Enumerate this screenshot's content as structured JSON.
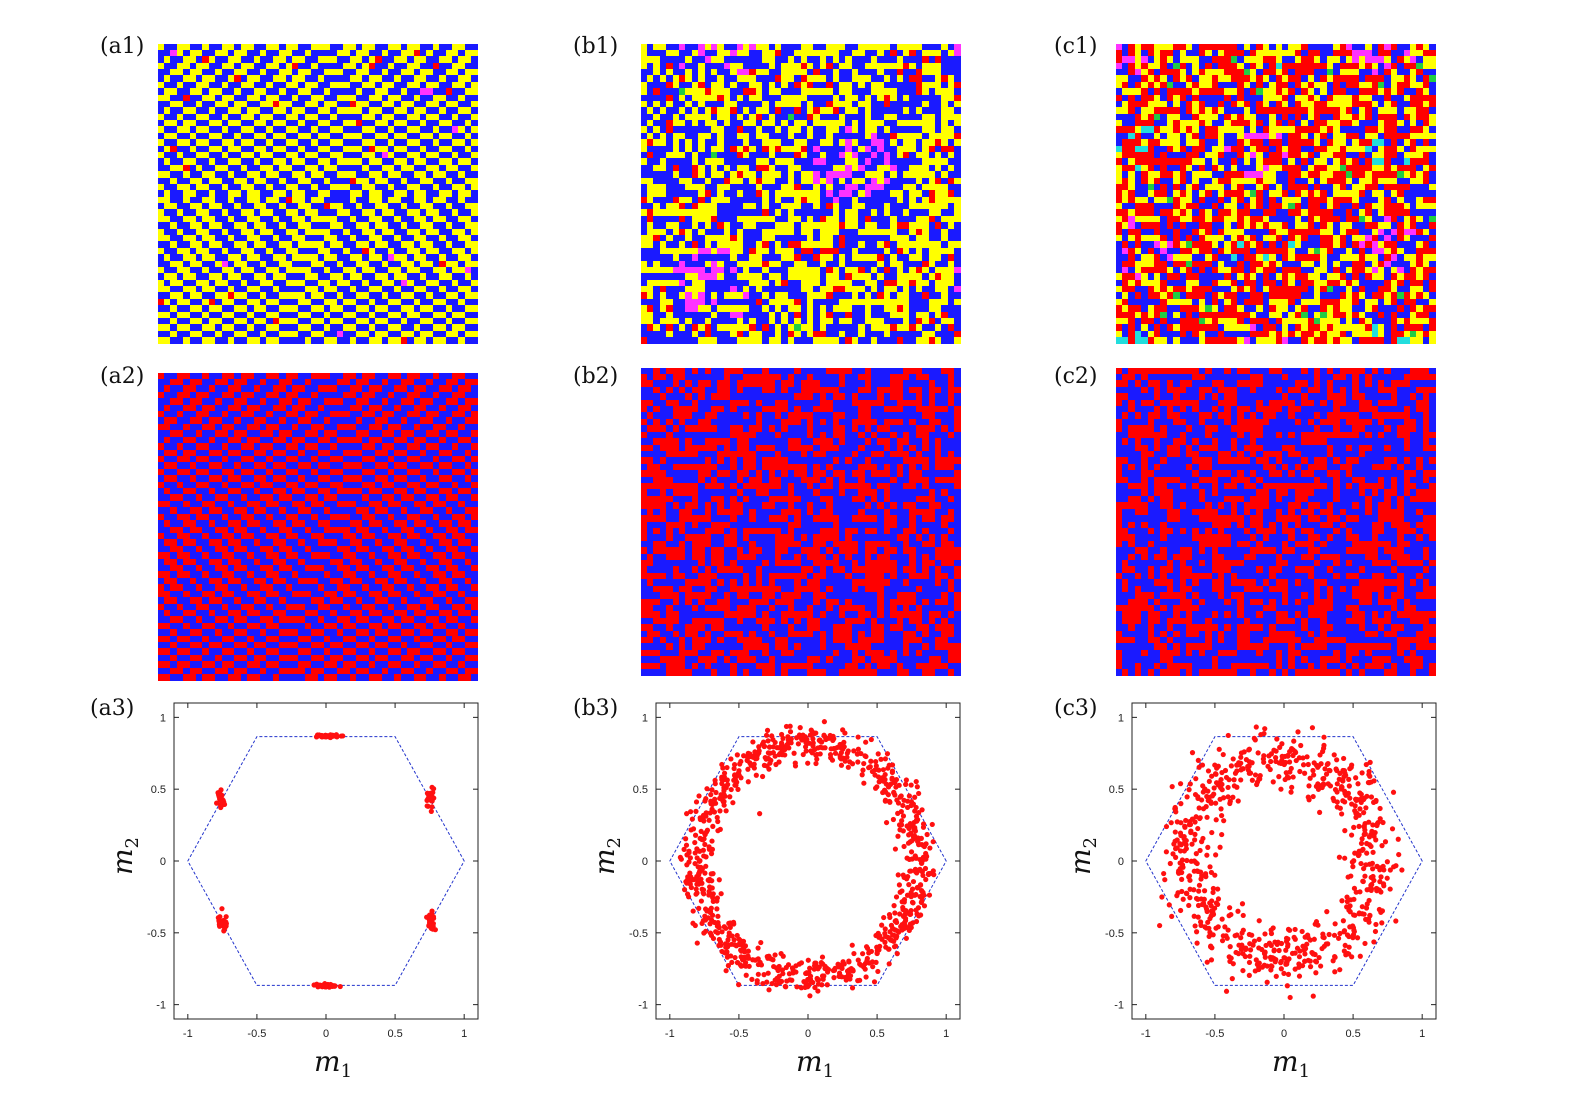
{
  "figure": {
    "colors": {
      "yellow": "#ffff00",
      "blue": "#1a1aff",
      "red": "#ff0000",
      "magenta": "#ff33ff",
      "green": "#22cc44",
      "cyan": "#22dddd",
      "hexagon": "#2233cc",
      "points": "#ff1010"
    },
    "columns": [
      {
        "id": "a",
        "lattice1": {
          "label": "(a1)",
          "pattern": "ordered stripes with hexagonal domain walls",
          "palette": [
            "yellow",
            "blue",
            "red",
            "magenta"
          ]
        },
        "lattice2": {
          "label": "(a2)",
          "pattern": "ordered stripes with hexagonal domain walls",
          "palette": [
            "red",
            "blue"
          ]
        },
        "plot": {
          "label": "(a3)"
        }
      },
      {
        "id": "b",
        "lattice1": {
          "label": "(b1)",
          "pattern": "labyrinth stripes",
          "palette": [
            "yellow",
            "blue",
            "red",
            "magenta",
            "green"
          ]
        },
        "lattice2": {
          "label": "(b2)",
          "pattern": "labyrinth stripes",
          "palette": [
            "red",
            "blue"
          ]
        },
        "plot": {
          "label": "(b3)"
        }
      },
      {
        "id": "c",
        "lattice1": {
          "label": "(c1)",
          "pattern": "disordered",
          "palette": [
            "yellow",
            "blue",
            "red",
            "magenta",
            "green",
            "cyan"
          ]
        },
        "lattice2": {
          "label": "(c2)",
          "pattern": "disordered",
          "palette": [
            "red",
            "blue"
          ]
        },
        "plot": {
          "label": "(c3)"
        }
      }
    ]
  },
  "chart_data": [
    {
      "type": "scatter",
      "panel": "(a3)",
      "xlabel": "m1",
      "ylabel": "m2",
      "xlim": [
        -1.1,
        1.1
      ],
      "ylim": [
        -1.1,
        1.1
      ],
      "xticks": [
        "-1",
        "-0.5",
        "0",
        "0.5",
        "1"
      ],
      "yticks": [
        "-1",
        "-0.5",
        "0",
        "0.5",
        "1"
      ],
      "grid": false,
      "hexagon": [
        [
          1,
          0
        ],
        [
          0.5,
          0.866
        ],
        [
          -0.5,
          0.866
        ],
        [
          -1,
          0
        ],
        [
          -0.5,
          -0.866
        ],
        [
          0.5,
          -0.866
        ]
      ],
      "series": [
        {
          "distribution": "clusters",
          "clusters": [
            {
              "x": 0.0,
              "y": 0.87,
              "spread_x": 0.04,
              "spread_y": 0.005,
              "count": 40
            },
            {
              "x": -0.76,
              "y": 0.44,
              "spread_x": 0.015,
              "spread_y": 0.03,
              "count": 30
            },
            {
              "x": 0.76,
              "y": 0.44,
              "spread_x": 0.015,
              "spread_y": 0.03,
              "count": 30
            },
            {
              "x": -0.74,
              "y": -0.43,
              "spread_x": 0.015,
              "spread_y": 0.03,
              "count": 30
            },
            {
              "x": 0.76,
              "y": -0.42,
              "spread_x": 0.015,
              "spread_y": 0.035,
              "count": 30
            },
            {
              "x": 0.0,
              "y": -0.87,
              "spread_x": 0.04,
              "spread_y": 0.005,
              "count": 40
            }
          ]
        }
      ]
    },
    {
      "type": "scatter",
      "panel": "(b3)",
      "xlabel": "m1",
      "ylabel": "m2",
      "xlim": [
        -1.1,
        1.1
      ],
      "ylim": [
        -1.1,
        1.1
      ],
      "xticks": [
        "-1",
        "-0.5",
        "0",
        "0.5",
        "1"
      ],
      "yticks": [
        "-1",
        "-0.5",
        "0",
        "0.5",
        "1"
      ],
      "grid": false,
      "hexagon": [
        [
          1,
          0
        ],
        [
          0.5,
          0.866
        ],
        [
          -0.5,
          0.866
        ],
        [
          -1,
          0
        ],
        [
          -0.5,
          -0.866
        ],
        [
          0.5,
          -0.866
        ]
      ],
      "series": [
        {
          "distribution": "ring",
          "center": [
            0.0,
            0.0
          ],
          "radius_mean": 0.8,
          "radius_spread": 0.06,
          "count": 900,
          "outliers": [
            {
              "x": -0.35,
              "y": 0.33
            }
          ]
        }
      ]
    },
    {
      "type": "scatter",
      "panel": "(c3)",
      "xlabel": "m1",
      "ylabel": "m2",
      "xlim": [
        -1.1,
        1.1
      ],
      "ylim": [
        -1.1,
        1.1
      ],
      "xticks": [
        "-1",
        "-0.5",
        "0",
        "0.5",
        "1"
      ],
      "yticks": [
        "-1",
        "-0.5",
        "0",
        "0.5",
        "1"
      ],
      "grid": false,
      "hexagon": [
        [
          1,
          0
        ],
        [
          0.5,
          0.866
        ],
        [
          -0.5,
          0.866
        ],
        [
          -1,
          0
        ],
        [
          -0.5,
          -0.866
        ],
        [
          0.5,
          -0.866
        ]
      ],
      "series": [
        {
          "distribution": "ring",
          "center": [
            -0.02,
            0.03
          ],
          "radius_mean": 0.68,
          "radius_spread": 0.1,
          "count": 750,
          "outliers": []
        }
      ]
    }
  ]
}
